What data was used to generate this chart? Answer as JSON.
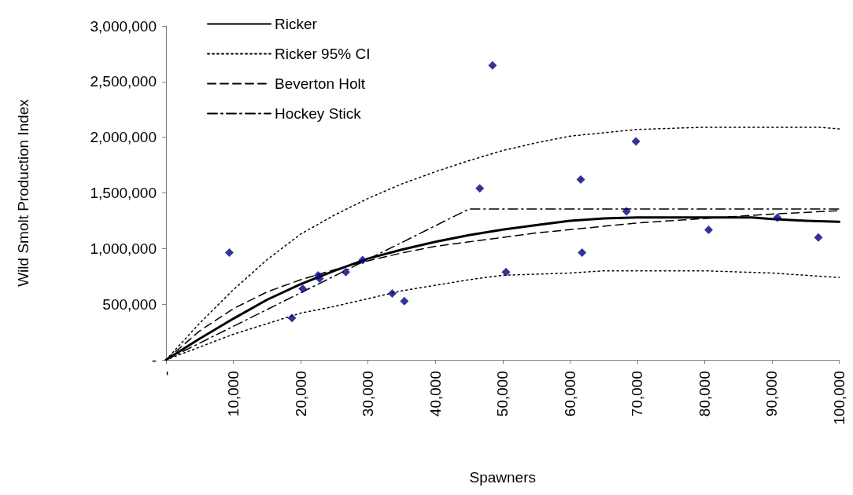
{
  "chart_data": {
    "type": "line",
    "xlabel": "Spawners",
    "ylabel": "Wild Smolt Production Index",
    "xlim": [
      0,
      100000
    ],
    "xticks": [
      {
        "value": 0,
        "label": "-"
      },
      {
        "value": 10000,
        "label": "10,000"
      },
      {
        "value": 20000,
        "label": "20,000"
      },
      {
        "value": 30000,
        "label": "30,000"
      },
      {
        "value": 40000,
        "label": "40,000"
      },
      {
        "value": 50000,
        "label": "50,000"
      },
      {
        "value": 60000,
        "label": "60,000"
      },
      {
        "value": 70000,
        "label": "70,000"
      },
      {
        "value": 80000,
        "label": "80,000"
      },
      {
        "value": 90000,
        "label": "90,000"
      },
      {
        "value": 100000,
        "label": "100,000"
      }
    ],
    "ylim": [
      0,
      3000000
    ],
    "yticks": [
      {
        "value": 0,
        "label": "-"
      },
      {
        "value": 500000,
        "label": "500,000"
      },
      {
        "value": 1000000,
        "label": "1,000,000"
      },
      {
        "value": 1500000,
        "label": "1,500,000"
      },
      {
        "value": 2000000,
        "label": "2,000,000"
      },
      {
        "value": 2500000,
        "label": "2,500,000"
      },
      {
        "value": 3000000,
        "label": "3,000,000"
      }
    ],
    "grid": false,
    "legend": "top left",
    "marker": "none",
    "series": [
      {
        "name": "Ricker",
        "color": "#000000",
        "line_style": "solid",
        "x": [
          0,
          5000,
          10000,
          15000,
          20000,
          25000,
          30000,
          35000,
          40000,
          45000,
          50000,
          55000,
          60000,
          65000,
          70000,
          80000,
          87000,
          90000,
          95000,
          100000
        ],
        "values": [
          0,
          190000,
          370000,
          540000,
          680000,
          800000,
          910000,
          990000,
          1060000,
          1120000,
          1170000,
          1210000,
          1250000,
          1270000,
          1280000,
          1280000,
          1280000,
          1265000,
          1250000,
          1240000
        ]
      },
      {
        "name": "Ricker 95% CI",
        "color": "#000000",
        "line_style": "dotted",
        "x": [
          0,
          5000,
          10000,
          15000,
          20000,
          25000,
          30000,
          35000,
          40000,
          45000,
          50000,
          55000,
          60000,
          65000,
          70000,
          80000,
          90000,
          97000,
          100000,
          null,
          0,
          10000,
          20000,
          25000,
          30000,
          35000,
          40000,
          45000,
          50000,
          60000,
          65000,
          80000,
          90000,
          100000
        ],
        "values": [
          0,
          330000,
          630000,
          900000,
          1130000,
          1300000,
          1450000,
          1580000,
          1690000,
          1790000,
          1880000,
          1950000,
          2010000,
          2040000,
          2070000,
          2090000,
          2090000,
          2090000,
          2075000,
          null,
          0,
          230000,
          420000,
          480000,
          550000,
          620000,
          670000,
          720000,
          760000,
          780000,
          800000,
          800000,
          780000,
          740000
        ]
      },
      {
        "name": "Beverton Holt",
        "color": "#000000",
        "line_style": "dashed",
        "x": [
          0,
          5000,
          10000,
          15000,
          20000,
          25000,
          30000,
          35000,
          40000,
          45000,
          50000,
          55000,
          60000,
          70000,
          80000,
          90000,
          100000
        ],
        "values": [
          0,
          260000,
          460000,
          610000,
          720000,
          810000,
          890000,
          960000,
          1020000,
          1060000,
          1100000,
          1140000,
          1170000,
          1230000,
          1270000,
          1310000,
          1340000
        ]
      },
      {
        "name": "Hockey Stick",
        "color": "#000000",
        "line_style": "dashdot",
        "x": [
          0,
          45000,
          100000
        ],
        "values": [
          0,
          1355000,
          1355000
        ]
      },
      {
        "type": "scatter",
        "color": "#000080",
        "marker": "diamond",
        "x": [
          9400,
          18700,
          20300,
          22600,
          22800,
          26700,
          29200,
          33600,
          35400,
          46600,
          48500,
          50500,
          61600,
          61800,
          68400,
          69800,
          80600,
          90800,
          96900
        ],
        "values": [
          964000,
          376000,
          638000,
          759000,
          731000,
          788000,
          897000,
          597000,
          528000,
          1540000,
          2645000,
          788000,
          1620000,
          964000,
          1335000,
          1962000,
          1169000,
          1278000,
          1100000
        ]
      }
    ]
  }
}
